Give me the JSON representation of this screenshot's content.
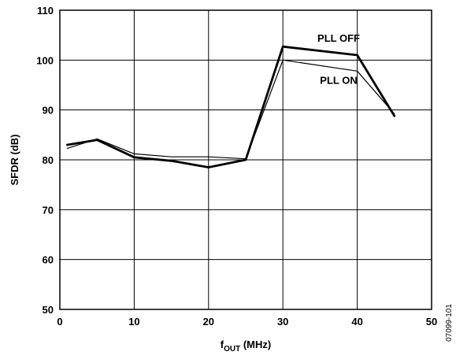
{
  "chart_data": {
    "type": "line",
    "xlabel_main": "f",
    "xlabel_sub": "OUT",
    "xlabel_rest": " (MHz)",
    "ylabel": "SFDR (dB)",
    "xlim": [
      0,
      50
    ],
    "ylim": [
      50,
      110
    ],
    "xticks": [
      0,
      10,
      20,
      30,
      40,
      50
    ],
    "yticks": [
      50,
      60,
      70,
      80,
      90,
      100,
      110
    ],
    "grid": true,
    "series": [
      {
        "name": "PLL OFF",
        "color": "#000000",
        "weight": "thick",
        "x": [
          1,
          5,
          10,
          15,
          20,
          25,
          30,
          40,
          45
        ],
        "y": [
          83.0,
          84.0,
          80.5,
          79.8,
          78.5,
          80.0,
          102.7,
          101.0,
          88.8
        ]
      },
      {
        "name": "PLL ON",
        "color": "#000000",
        "weight": "thin",
        "x": [
          1,
          5,
          10,
          15,
          20,
          25,
          30,
          40,
          45
        ],
        "y": [
          82.3,
          84.2,
          81.2,
          80.6,
          80.6,
          80.2,
          100.0,
          97.8,
          89.2
        ]
      }
    ],
    "annotations": [
      {
        "text": "PLL OFF",
        "x": 37.5,
        "y": 104.5
      },
      {
        "text": "PLL ON",
        "x": 37.5,
        "y": 96.0
      }
    ],
    "figure_id": "07099-101"
  }
}
